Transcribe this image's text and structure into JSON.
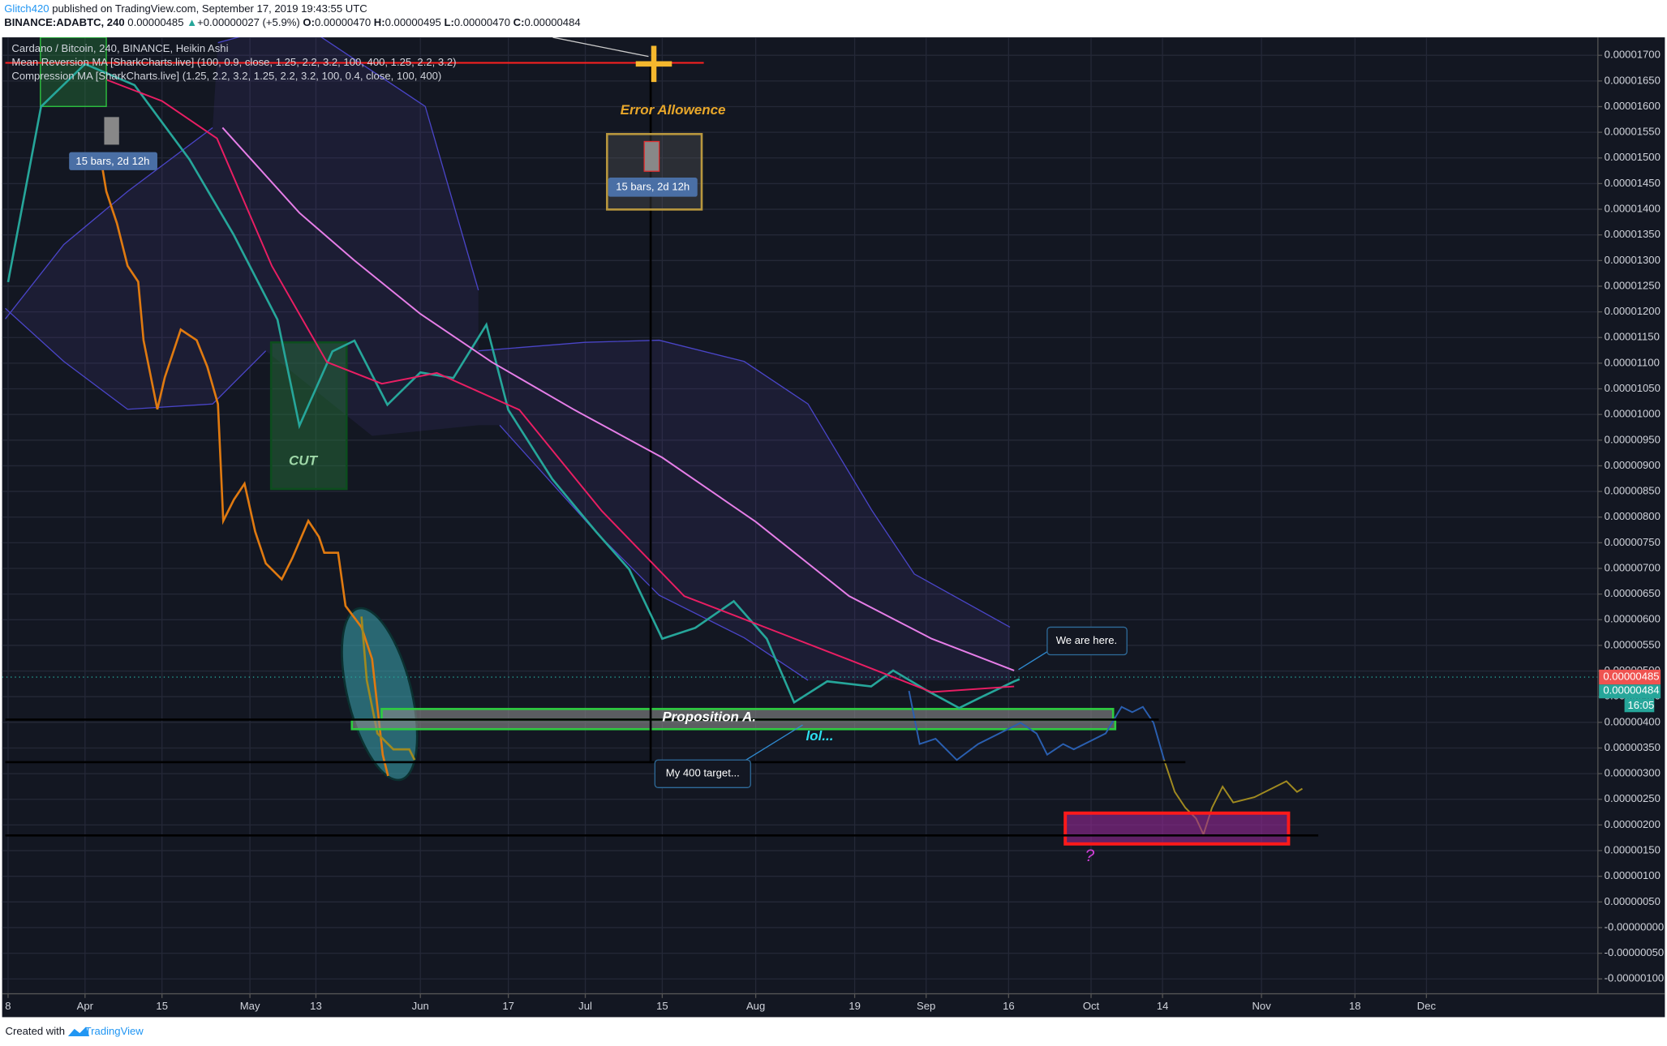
{
  "header": {
    "user": "Glitch420",
    "published": "published on TradingView.com, September 17, 2019 19:43:55 UTC",
    "symbol": "BINANCE:ADABTC, 240",
    "price": "0.00000485",
    "arrow": "▲",
    "change": "+0.00000027 (+5.9%)",
    "o_label": "O:",
    "o": "0.00000470",
    "h_label": "H:",
    "h": "0.00000495",
    "l_label": "L:",
    "l": "0.00000470",
    "c_label": "C:",
    "c": "0.00000484"
  },
  "annotations": {
    "bars1": "15 bars, 2d 12h",
    "bars2": "15 bars, 2d 12h",
    "error": "Error Allowence",
    "cut": "CUT",
    "proposition": "Proposition A.",
    "lol": "lol...",
    "target": "My 400 target...",
    "here": "We are here.",
    "question": "?"
  },
  "price_badges": {
    "last": "0.00000485",
    "close": "0.00000484",
    "timer": "16:05"
  },
  "footer": {
    "created": "Created with",
    "brand": "TradingView"
  },
  "chart_data": {
    "type": "line",
    "grid": true,
    "xlim": [
      76.5,
      366
    ],
    "ylim": [
      -1.29e-06,
      1.735e-05
    ],
    "xticks": [
      {
        "value": 77,
        "label": "8"
      },
      {
        "value": 91,
        "label": "Apr"
      },
      {
        "value": 105,
        "label": "15"
      },
      {
        "value": 121,
        "label": "May"
      },
      {
        "value": 133,
        "label": "13"
      },
      {
        "value": 152,
        "label": "Jun"
      },
      {
        "value": 168,
        "label": "17"
      },
      {
        "value": 182,
        "label": "Jul"
      },
      {
        "value": 196,
        "label": "15"
      },
      {
        "value": 213,
        "label": "Aug"
      },
      {
        "value": 231,
        "label": "19"
      },
      {
        "value": 244,
        "label": "Sep"
      },
      {
        "value": 259,
        "label": "16"
      },
      {
        "value": 274,
        "label": "Oct"
      },
      {
        "value": 287,
        "label": "14"
      },
      {
        "value": 305,
        "label": "Nov"
      },
      {
        "value": 322,
        "label": "18"
      },
      {
        "value": 335,
        "label": "Dec"
      }
    ],
    "yticks": [
      {
        "value": 1.7e-05,
        "label": "0.00001700"
      },
      {
        "value": 1.65e-05,
        "label": "0.00001650"
      },
      {
        "value": 1.6e-05,
        "label": "0.00001600"
      },
      {
        "value": 1.55e-05,
        "label": "0.00001550"
      },
      {
        "value": 1.5e-05,
        "label": "0.00001500"
      },
      {
        "value": 1.45e-05,
        "label": "0.00001450"
      },
      {
        "value": 1.4e-05,
        "label": "0.00001400"
      },
      {
        "value": 1.35e-05,
        "label": "0.00001350"
      },
      {
        "value": 1.3e-05,
        "label": "0.00001300"
      },
      {
        "value": 1.25e-05,
        "label": "0.00001250"
      },
      {
        "value": 1.2e-05,
        "label": "0.00001200"
      },
      {
        "value": 1.15e-05,
        "label": "0.00001150"
      },
      {
        "value": 1.1e-05,
        "label": "0.00001100"
      },
      {
        "value": 1.05e-05,
        "label": "0.00001050"
      },
      {
        "value": 1e-05,
        "label": "0.00001000"
      },
      {
        "value": 9.5e-06,
        "label": "0.00000950"
      },
      {
        "value": 9e-06,
        "label": "0.00000900"
      },
      {
        "value": 8.5e-06,
        "label": "0.00000850"
      },
      {
        "value": 8e-06,
        "label": "0.00000800"
      },
      {
        "value": 7.5e-06,
        "label": "0.00000750"
      },
      {
        "value": 7e-06,
        "label": "0.00000700"
      },
      {
        "value": 6.5e-06,
        "label": "0.00000650"
      },
      {
        "value": 6e-06,
        "label": "0.00000600"
      },
      {
        "value": 5.5e-06,
        "label": "0.00000550"
      },
      {
        "value": 5e-06,
        "label": "0.00000500"
      },
      {
        "value": 4.5e-06,
        "label": "0.00000450"
      },
      {
        "value": 4e-06,
        "label": "0.00000400"
      },
      {
        "value": 3.5e-06,
        "label": "0.00000350"
      },
      {
        "value": 3e-06,
        "label": "0.00000300"
      },
      {
        "value": 2.5e-06,
        "label": "0.00000250"
      },
      {
        "value": 2e-06,
        "label": "0.00000200"
      },
      {
        "value": 1.5e-06,
        "label": "0.00000150"
      },
      {
        "value": 1e-06,
        "label": "0.00000100"
      },
      {
        "value": 5e-07,
        "label": "0.00000050"
      },
      {
        "value": 0,
        "label": "-0.00000000"
      },
      {
        "value": -5e-07,
        "label": "-0.00000050"
      },
      {
        "value": -1e-06,
        "label": "-0.00000100"
      }
    ],
    "series": [
      {
        "name": "Cardano / Bitcoin, 240, BINANCE, Heikin Ashi",
        "color": "#26a69a",
        "x": [
          77,
          83,
          91,
          100,
          110,
          118,
          126,
          130,
          136,
          140,
          146,
          152,
          158,
          164,
          168,
          176,
          184,
          190,
          196,
          202,
          209,
          215,
          220,
          226,
          234,
          238,
          244,
          250,
          254,
          260,
          261
        ],
        "values": [
          1.258e-05,
          1.6e-05,
          1.683e-05,
          1.642e-05,
          1.497e-05,
          1.351e-05,
          1.185e-05,
          9.78e-06,
          1.123e-05,
          1.144e-05,
          1.019e-05,
          1.082e-05,
          1.071e-05,
          1.175e-05,
          1.009e-05,
          8.74e-06,
          7.71e-06,
          6.98e-06,
          5.63e-06,
          5.84e-06,
          6.36e-06,
          5.63e-06,
          4.39e-06,
          4.8e-06,
          4.7e-06,
          5.01e-06,
          4.63e-06,
          4.28e-06,
          4.49e-06,
          4.8e-06,
          4.84e-06
        ]
      },
      {
        "name": "Mean Reversion MA [SharkCharts.live] (100, 0.9, close, 1.25, 2.2, 3.2, 100, 400, 1.25, 2.2, 3.2)",
        "color": "#e91e63",
        "x": [
          95,
          105,
          115,
          125,
          135,
          145,
          155,
          170,
          185,
          200,
          215,
          230,
          245,
          260
        ],
        "values": [
          1.652e-05,
          1.611e-05,
          1.538e-05,
          1.289e-05,
          1.102e-05,
          1.06e-05,
          1.081e-05,
          1.009e-05,
          8.12e-06,
          6.46e-06,
          5.84e-06,
          5.22e-06,
          4.59e-06,
          4.7e-06
        ]
      },
      {
        "name": "Compression MA [SharkCharts.live] (1.25, 2.2, 3.2, 1.25, 2.2, 3.2, 100, 0.4, close, 100, 400)",
        "color": "#e67ee8",
        "x": [
          116,
          130,
          140,
          152,
          165,
          180,
          196,
          213,
          230,
          245,
          260
        ],
        "values": [
          1.559e-05,
          1.393e-05,
          1.3e-05,
          1.196e-05,
          1.102e-05,
          1.009e-05,
          9.16e-06,
          7.91e-06,
          6.46e-06,
          5.63e-06,
          5.01e-06
        ]
      }
    ]
  }
}
